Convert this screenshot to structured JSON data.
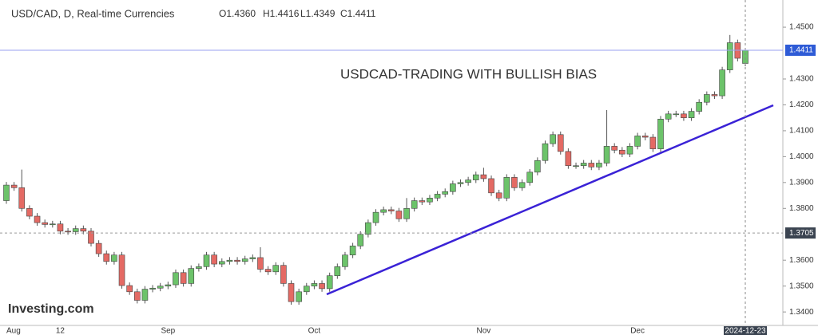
{
  "chart_data": {
    "type": "candlestick",
    "title": "USD/CAD, D, Real-time Currencies",
    "ohlc_labels": [
      "O1.4360",
      "H1.4416",
      "L1.4349",
      "C1.4411"
    ],
    "annotation": "USDCAD-TRADING WITH BULLISH BIAS",
    "watermark": "Investing.com",
    "up_color": "#6cc36a",
    "down_color": "#e46a64",
    "categories": [
      "Aug",
      null,
      null,
      null,
      null,
      null,
      null,
      "12",
      null,
      null,
      null,
      null,
      null,
      null,
      null,
      null,
      null,
      null,
      null,
      null,
      null,
      "Sep",
      null,
      null,
      null,
      null,
      null,
      null,
      null,
      null,
      null,
      null,
      null,
      null,
      null,
      null,
      null,
      null,
      null,
      null,
      "Oct",
      null,
      null,
      null,
      null,
      null,
      null,
      null,
      null,
      null,
      null,
      null,
      null,
      null,
      null,
      null,
      null,
      null,
      null,
      null,
      null,
      null,
      "Nov",
      null,
      null,
      null,
      null,
      null,
      null,
      null,
      null,
      null,
      null,
      null,
      null,
      null,
      null,
      null,
      null,
      null,
      null,
      null,
      "Dec",
      null,
      null,
      null,
      null,
      null,
      null,
      null,
      null,
      null,
      null,
      null,
      null,
      null,
      "2024-12-23"
    ],
    "open": [
      1.383,
      1.389,
      1.388,
      1.38,
      1.377,
      1.3745,
      1.3738,
      1.374,
      1.3712,
      1.371,
      1.3722,
      1.3712,
      1.3665,
      1.3625,
      1.3595,
      1.362,
      1.3502,
      1.3478,
      1.3445,
      1.3488,
      1.3492,
      1.35,
      1.3505,
      1.3552,
      1.351,
      1.3568,
      1.3575,
      1.362,
      1.3585,
      1.3595,
      1.36,
      1.3595,
      1.3605,
      1.361,
      1.3565,
      1.3555,
      1.358,
      1.351,
      1.344,
      1.3478,
      1.35,
      1.351,
      1.349,
      1.354,
      1.3575,
      1.362,
      1.3655,
      1.37,
      1.3745,
      1.3785,
      1.3795,
      1.379,
      1.376,
      1.38,
      1.383,
      1.3825,
      1.384,
      1.3855,
      1.3865,
      1.3895,
      1.39,
      1.391,
      1.393,
      1.3915,
      1.386,
      1.384,
      1.392,
      1.388,
      1.39,
      1.394,
      1.3985,
      1.405,
      1.4085,
      1.402,
      1.3965,
      1.3965,
      1.3975,
      1.396,
      1.3975,
      1.404,
      1.4025,
      1.401,
      1.404,
      1.408,
      1.4075,
      1.403,
      1.4145,
      1.4165,
      1.4165,
      1.415,
      1.4175,
      1.421,
      1.424,
      1.4235,
      1.4335,
      1.444,
      1.436
    ],
    "high": [
      1.3902,
      1.3902,
      1.395,
      1.3812,
      1.3782,
      1.3757,
      1.3752,
      1.3752,
      1.3724,
      1.3734,
      1.3734,
      1.3724,
      1.3677,
      1.3637,
      1.3632,
      1.3632,
      1.3514,
      1.349,
      1.35,
      1.3504,
      1.3512,
      1.3517,
      1.3564,
      1.3564,
      1.358,
      1.3587,
      1.3632,
      1.3632,
      1.3607,
      1.3612,
      1.3612,
      1.3617,
      1.3622,
      1.365,
      1.3577,
      1.3592,
      1.3592,
      1.3522,
      1.349,
      1.3512,
      1.3522,
      1.3522,
      1.3552,
      1.3587,
      1.3632,
      1.3667,
      1.3712,
      1.3757,
      1.3797,
      1.3807,
      1.3807,
      1.3802,
      1.384,
      1.3842,
      1.3842,
      1.3852,
      1.3867,
      1.3877,
      1.3907,
      1.3912,
      1.3922,
      1.3942,
      1.3957,
      1.3927,
      1.3872,
      1.3932,
      1.3932,
      1.3912,
      1.3952,
      1.3997,
      1.4062,
      1.4097,
      1.4097,
      1.4032,
      1.3977,
      1.3987,
      1.3987,
      1.3987,
      1.418,
      1.4052,
      1.4037,
      1.4052,
      1.4092,
      1.4092,
      1.4087,
      1.4157,
      1.4177,
      1.4177,
      1.4177,
      1.4187,
      1.4222,
      1.4252,
      1.4252,
      1.4347,
      1.447,
      1.4452,
      1.4416
    ],
    "low": [
      1.3818,
      1.3868,
      1.3788,
      1.3758,
      1.3733,
      1.3726,
      1.3726,
      1.37,
      1.3698,
      1.3698,
      1.37,
      1.3653,
      1.3613,
      1.3583,
      1.3583,
      1.349,
      1.3466,
      1.3433,
      1.3433,
      1.3476,
      1.348,
      1.3488,
      1.3493,
      1.3498,
      1.3498,
      1.3556,
      1.3563,
      1.3573,
      1.3573,
      1.3583,
      1.3583,
      1.3583,
      1.3593,
      1.3553,
      1.3543,
      1.3543,
      1.3498,
      1.3428,
      1.3428,
      1.3466,
      1.3488,
      1.3478,
      1.3478,
      1.3528,
      1.3563,
      1.3608,
      1.3643,
      1.3688,
      1.3733,
      1.3773,
      1.3778,
      1.3748,
      1.3748,
      1.3788,
      1.3813,
      1.3813,
      1.3828,
      1.3843,
      1.3853,
      1.3883,
      1.3888,
      1.3898,
      1.3903,
      1.3848,
      1.3828,
      1.3828,
      1.3868,
      1.3868,
      1.3888,
      1.3928,
      1.3973,
      1.4038,
      1.4008,
      1.3953,
      1.3953,
      1.3953,
      1.3948,
      1.3948,
      1.3963,
      1.4013,
      1.3998,
      1.3998,
      1.4028,
      1.4063,
      1.4018,
      1.4018,
      1.4133,
      1.4153,
      1.4138,
      1.4138,
      1.4163,
      1.4198,
      1.4223,
      1.4223,
      1.4323,
      1.4368,
      1.4349
    ],
    "close": [
      1.389,
      1.388,
      1.38,
      1.377,
      1.3745,
      1.3738,
      1.374,
      1.3712,
      1.371,
      1.3722,
      1.3712,
      1.3665,
      1.3625,
      1.3595,
      1.362,
      1.3502,
      1.3478,
      1.3445,
      1.3488,
      1.3492,
      1.35,
      1.3505,
      1.3552,
      1.351,
      1.3568,
      1.3575,
      1.362,
      1.3585,
      1.3595,
      1.36,
      1.3595,
      1.3605,
      1.361,
      1.3565,
      1.3555,
      1.358,
      1.351,
      1.344,
      1.3478,
      1.35,
      1.351,
      1.349,
      1.354,
      1.3575,
      1.362,
      1.3655,
      1.37,
      1.3745,
      1.3785,
      1.3795,
      1.379,
      1.376,
      1.38,
      1.383,
      1.3825,
      1.384,
      1.3855,
      1.3865,
      1.3895,
      1.39,
      1.391,
      1.393,
      1.3915,
      1.386,
      1.384,
      1.392,
      1.388,
      1.39,
      1.394,
      1.3985,
      1.405,
      1.4085,
      1.402,
      1.3965,
      1.3965,
      1.3975,
      1.396,
      1.3975,
      1.404,
      1.4025,
      1.401,
      1.404,
      1.408,
      1.4075,
      1.403,
      1.4145,
      1.4165,
      1.4165,
      1.415,
      1.4175,
      1.421,
      1.424,
      1.4235,
      1.4335,
      1.444,
      1.438,
      1.4411
    ],
    "ylim": [
      1.3348,
      1.4605
    ],
    "yticks": [
      {
        "value": 1.34,
        "label": "1.3400"
      },
      {
        "value": 1.35,
        "label": "1.3500"
      },
      {
        "value": 1.36,
        "label": "1.3600"
      },
      {
        "value": 1.38,
        "label": "1.3800"
      },
      {
        "value": 1.39,
        "label": "1.3900"
      },
      {
        "value": 1.4,
        "label": "1.4000"
      },
      {
        "value": 1.41,
        "label": "1.4100"
      },
      {
        "value": 1.42,
        "label": "1.4200"
      },
      {
        "value": 1.43,
        "label": "1.4300"
      },
      {
        "value": 1.45,
        "label": "1.4500"
      }
    ],
    "last_price": 1.4411,
    "crosshair_price": 1.3705
  }
}
